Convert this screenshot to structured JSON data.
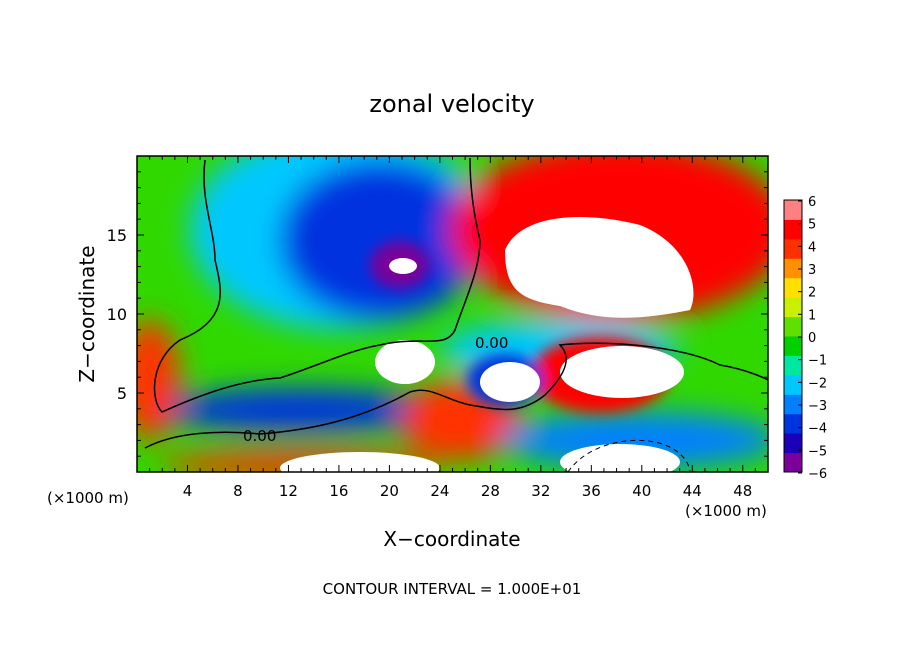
{
  "chart_data": {
    "type": "heatmap",
    "title": "zonal velocity",
    "xlabel": "X−coordinate",
    "ylabel": "Z−coordinate",
    "x_unit_left": "(×1000 m)",
    "x_unit_right": "(×1000 m)",
    "footer": "CONTOUR INTERVAL = 1.000E+01",
    "contour_label_upper": "0.00",
    "contour_label_lower": "0.00",
    "xlim": [
      0,
      50
    ],
    "ylim": [
      0,
      20
    ],
    "x_ticks": [
      4,
      8,
      12,
      16,
      20,
      24,
      28,
      32,
      36,
      40,
      44,
      48
    ],
    "y_ticks": [
      5,
      10,
      15
    ],
    "colorbar": {
      "min": -6,
      "max": 6,
      "tick_labels": [
        "6",
        "5",
        "4",
        "3",
        "2",
        "1",
        "0",
        "−1",
        "−2",
        "−3",
        "−4",
        "−5",
        "−6"
      ],
      "colors": [
        "#7a0099",
        "#1a00b8",
        "#0033e0",
        "#0080ff",
        "#00c8ff",
        "#00e8a0",
        "#00d000",
        "#60e000",
        "#c8f000",
        "#ffe000",
        "#ff9000",
        "#ff3000",
        "#ff0000",
        "#ff8080"
      ]
    }
  }
}
